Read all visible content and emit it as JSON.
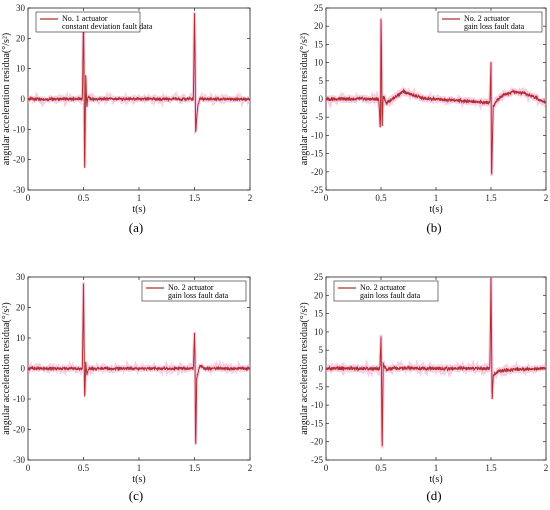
{
  "chart_data": [
    {
      "type": "line",
      "panel_label": "(a)",
      "xlabel": "t(s)",
      "ylabel": "angular acceleration residua(°/s²)",
      "xlim": [
        0,
        2
      ],
      "ylim": [
        -30,
        30
      ],
      "xticks": [
        0,
        0.5,
        1,
        1.5,
        2
      ],
      "yticks": [
        -30,
        -20,
        -10,
        0,
        10,
        20,
        30
      ],
      "legend": "top-left",
      "series": [
        {
          "name": "No. 1 actuator constant deviation fault data",
          "legend_lines": [
            "No. 1 actuator",
            "constant deviation fault data"
          ],
          "color": "#b03030",
          "x": [
            0,
            0.49,
            0.5,
            0.505,
            0.51,
            0.52,
            0.53,
            0.54,
            0.56,
            0.6,
            1.0,
            1.49,
            1.5,
            1.505,
            1.51,
            1.52,
            1.53,
            1.55,
            1.6,
            2.0
          ],
          "y": [
            0,
            0,
            27.5,
            10,
            -27,
            8,
            -3,
            1,
            0,
            0,
            0,
            0,
            28,
            16,
            -12,
            -6,
            -2,
            0,
            0,
            0
          ]
        }
      ]
    },
    {
      "type": "line",
      "panel_label": "(b)",
      "xlabel": "t(s)",
      "ylabel": "angular acceleration residua(°/s²)",
      "xlim": [
        0,
        2
      ],
      "ylim": [
        -25,
        25
      ],
      "xticks": [
        0,
        0.5,
        1,
        1.5,
        2
      ],
      "yticks": [
        -25,
        -20,
        -15,
        -10,
        -5,
        0,
        5,
        10,
        15,
        20,
        25
      ],
      "legend": "top-right",
      "series": [
        {
          "name": "No. 2 actuator gain loss fault data",
          "legend_lines": [
            "No. 2 actuator",
            "gain loss fault data"
          ],
          "color": "#b03030",
          "x": [
            0,
            0.48,
            0.495,
            0.5,
            0.505,
            0.51,
            0.52,
            0.55,
            0.6,
            0.7,
            0.8,
            0.9,
            1.0,
            1.49,
            1.5,
            1.505,
            1.51,
            1.52,
            1.55,
            1.6,
            1.7,
            1.8,
            1.9,
            2.0
          ],
          "y": [
            0,
            0,
            -9,
            22.5,
            12,
            -8.5,
            1,
            -1,
            0,
            2,
            1,
            0,
            0,
            -1,
            10,
            -23,
            -15,
            -2,
            -0.5,
            1,
            2,
            1.5,
            0.5,
            -1
          ]
        }
      ]
    },
    {
      "type": "line",
      "panel_label": "(c)",
      "xlabel": "t(s)",
      "ylabel": "angular acceleration residua(°/s²)",
      "xlim": [
        0,
        2
      ],
      "ylim": [
        -30,
        30
      ],
      "xticks": [
        0,
        0.5,
        1,
        1.5,
        2
      ],
      "yticks": [
        -30,
        -20,
        -10,
        0,
        10,
        20,
        30
      ],
      "legend": "top-right",
      "series": [
        {
          "name": "No. 2 actuator gain loss fault data",
          "legend_lines": [
            "No. 2 actuator",
            "gain loss fault data"
          ],
          "color": "#b03030",
          "x": [
            0,
            0.49,
            0.5,
            0.505,
            0.51,
            0.52,
            0.53,
            0.55,
            0.6,
            1.0,
            1.49,
            1.5,
            1.505,
            1.51,
            1.52,
            1.55,
            1.6,
            2.0
          ],
          "y": [
            0,
            0,
            27.5,
            10,
            -11,
            2,
            -2,
            0,
            0,
            0,
            0,
            11.5,
            4,
            -28,
            -3,
            1,
            0,
            0
          ]
        }
      ]
    },
    {
      "type": "line",
      "panel_label": "(d)",
      "xlabel": "t(s)",
      "ylabel": "angular acceleration residua(°/s²)",
      "xlim": [
        0,
        2
      ],
      "ylim": [
        -25,
        25
      ],
      "xticks": [
        0,
        0.5,
        1,
        1.5,
        2
      ],
      "yticks": [
        -25,
        -20,
        -15,
        -10,
        -5,
        0,
        5,
        10,
        15,
        20,
        25
      ],
      "legend": "top-left",
      "series": [
        {
          "name": "No. 2 actuator gain loss fault data",
          "legend_lines": [
            "No. 2 actuator",
            "gain loss fault data"
          ],
          "color": "#b03030",
          "x": [
            0,
            0.49,
            0.5,
            0.505,
            0.51,
            0.52,
            0.55,
            0.6,
            1.0,
            1.49,
            1.5,
            1.505,
            1.51,
            1.52,
            1.55,
            1.6,
            1.7,
            2.0
          ],
          "y": [
            0,
            0,
            8.5,
            -4,
            -23.5,
            1,
            -0.5,
            0,
            0,
            0,
            25,
            8,
            -9,
            -2,
            -1,
            -0.5,
            -0.3,
            0
          ]
        }
      ]
    }
  ]
}
